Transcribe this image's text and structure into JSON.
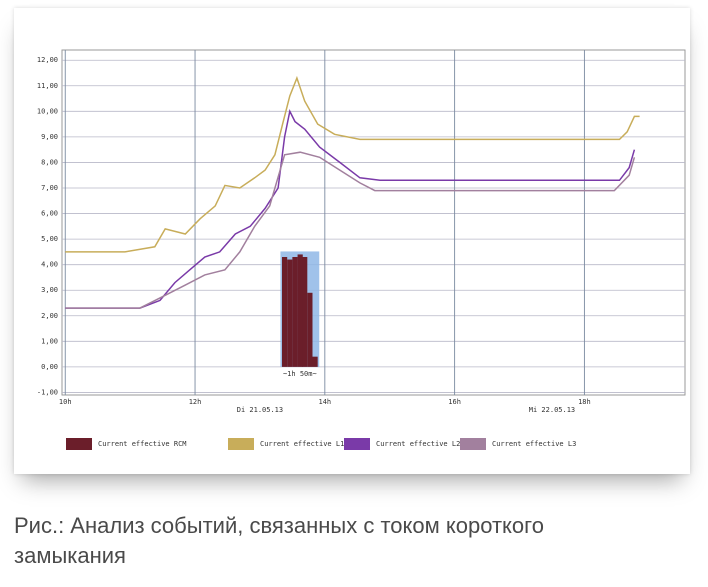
{
  "chart_data": {
    "type": "line",
    "xlim": [
      9.95,
      19.55
    ],
    "xticks": [
      {
        "value": 10,
        "label": "10h"
      },
      {
        "value": 12,
        "label": "12h"
      },
      {
        "value": 14,
        "label": "14h"
      },
      {
        "value": 16,
        "label": "16h"
      },
      {
        "value": 18,
        "label": "18h"
      }
    ],
    "date_labels": [
      {
        "value": 13,
        "label": "Di 21.05.13"
      },
      {
        "value": 17.5,
        "label": "Mi 22.05.13"
      }
    ],
    "ylim": [
      -1.1,
      12.4
    ],
    "yticks": [
      {
        "value": -1,
        "label": "-1,00"
      },
      {
        "value": 0,
        "label": "0,00"
      },
      {
        "value": 1,
        "label": "1,00"
      },
      {
        "value": 2,
        "label": "2,00"
      },
      {
        "value": 3,
        "label": "3,00"
      },
      {
        "value": 4,
        "label": "4,00"
      },
      {
        "value": 5,
        "label": "5,00"
      },
      {
        "value": 6,
        "label": "6,00"
      },
      {
        "value": 7,
        "label": "7,00"
      },
      {
        "value": 8,
        "label": "8,00"
      },
      {
        "value": 9,
        "label": "9,00"
      },
      {
        "value": 10,
        "label": "10,00"
      },
      {
        "value": 11,
        "label": "11,00"
      },
      {
        "value": 12,
        "label": "12,00"
      }
    ],
    "grid": true,
    "annotation": "~1h 50m~",
    "series": [
      {
        "name": "Current effective RCM",
        "color": "#6b1e2a",
        "kind": "bar",
        "x": [
          13.38,
          13.46,
          13.54,
          13.62,
          13.69,
          13.77,
          13.85
        ],
        "values": [
          4.3,
          4.2,
          4.3,
          4.4,
          4.3,
          2.9,
          0.4
        ]
      },
      {
        "name": "Current effective L1",
        "color": "#c8ad5a",
        "kind": "line",
        "x": [
          10,
          10.92,
          11.38,
          11.54,
          11.85,
          12.08,
          12.31,
          12.46,
          12.69,
          12.92,
          13.08,
          13.23,
          13.35,
          13.46,
          13.57,
          13.69,
          13.89,
          14.15,
          14.54,
          16.69,
          18.54,
          18.66,
          18.77,
          18.85
        ],
        "values": [
          4.5,
          4.5,
          4.7,
          5.4,
          5.2,
          5.8,
          6.3,
          7.1,
          7.0,
          7.4,
          7.7,
          8.3,
          9.5,
          10.6,
          11.3,
          10.4,
          9.5,
          9.1,
          8.9,
          8.9,
          8.9,
          9.2,
          9.8,
          9.8
        ]
      },
      {
        "name": "Current effective L2",
        "color": "#7a3aa8",
        "kind": "line",
        "x": [
          10,
          11.15,
          11.46,
          11.69,
          11.92,
          12.15,
          12.38,
          12.62,
          12.85,
          13.08,
          13.28,
          13.38,
          13.46,
          13.54,
          13.69,
          13.92,
          14.23,
          14.54,
          14.85,
          16.69,
          18.54,
          18.69,
          18.77
        ],
        "values": [
          2.3,
          2.3,
          2.6,
          3.3,
          3.8,
          4.3,
          4.5,
          5.2,
          5.5,
          6.2,
          7.0,
          9.0,
          10.0,
          9.6,
          9.3,
          8.6,
          8.0,
          7.4,
          7.3,
          7.3,
          7.3,
          7.8,
          8.5
        ]
      },
      {
        "name": "Current effective L3",
        "color": "#a2809e",
        "kind": "line",
        "x": [
          10,
          11.15,
          11.54,
          11.85,
          12.15,
          12.46,
          12.69,
          12.92,
          13.15,
          13.38,
          13.62,
          13.92,
          14.23,
          14.54,
          14.77,
          16.69,
          18.46,
          18.69,
          18.77
        ],
        "values": [
          2.3,
          2.3,
          2.8,
          3.2,
          3.6,
          3.8,
          4.5,
          5.5,
          6.3,
          8.3,
          8.4,
          8.2,
          7.7,
          7.2,
          6.9,
          6.9,
          6.9,
          7.5,
          8.2
        ]
      }
    ]
  },
  "caption": "Рис.: Анализ событий, связанных с током короткого замыкания"
}
